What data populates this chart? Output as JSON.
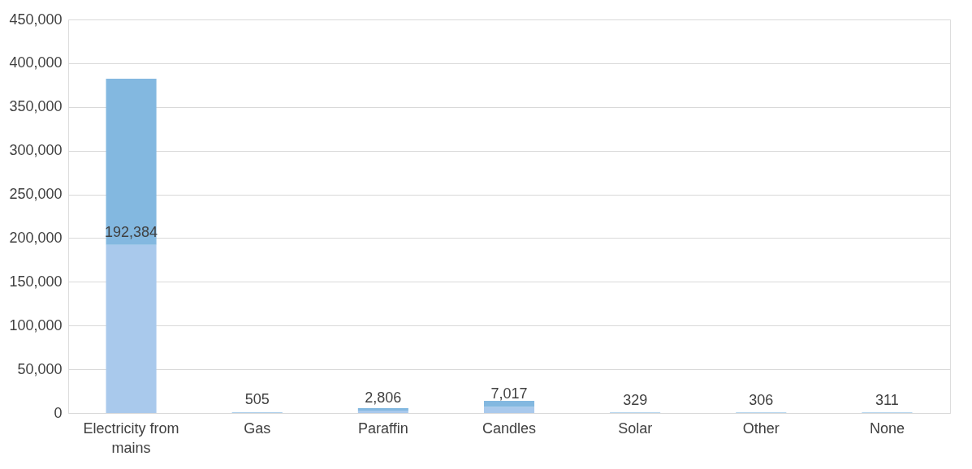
{
  "chart_data": {
    "type": "bar",
    "stacked": true,
    "categories": [
      "Electricity from mains",
      "Gas",
      "Paraffin",
      "Candles",
      "Solar",
      "Other",
      "None"
    ],
    "series": [
      {
        "color": "#a9c9ec",
        "values": [
          192384,
          505,
          2806,
          7017,
          329,
          306,
          311
        ],
        "value_labels": [
          "192,384",
          "505",
          "2,806",
          "7,017",
          "329",
          "306",
          "311"
        ]
      },
      {
        "color": "#83b8e0",
        "values": [
          190000,
          500,
          2800,
          7000,
          300,
          300,
          300
        ]
      }
    ],
    "ylim": [
      0,
      450000
    ],
    "yticks": [
      {
        "value": 0,
        "label": "0"
      },
      {
        "value": 50000,
        "label": "50,000"
      },
      {
        "value": 100000,
        "label": "100,000"
      },
      {
        "value": 150000,
        "label": "150,000"
      },
      {
        "value": 200000,
        "label": "200,000"
      },
      {
        "value": 250000,
        "label": "250,000"
      },
      {
        "value": 300000,
        "label": "300,000"
      },
      {
        "value": 350000,
        "label": "350,000"
      },
      {
        "value": 400000,
        "label": "400,000"
      },
      {
        "value": 450000,
        "label": "450,000"
      }
    ],
    "grid": "y"
  }
}
